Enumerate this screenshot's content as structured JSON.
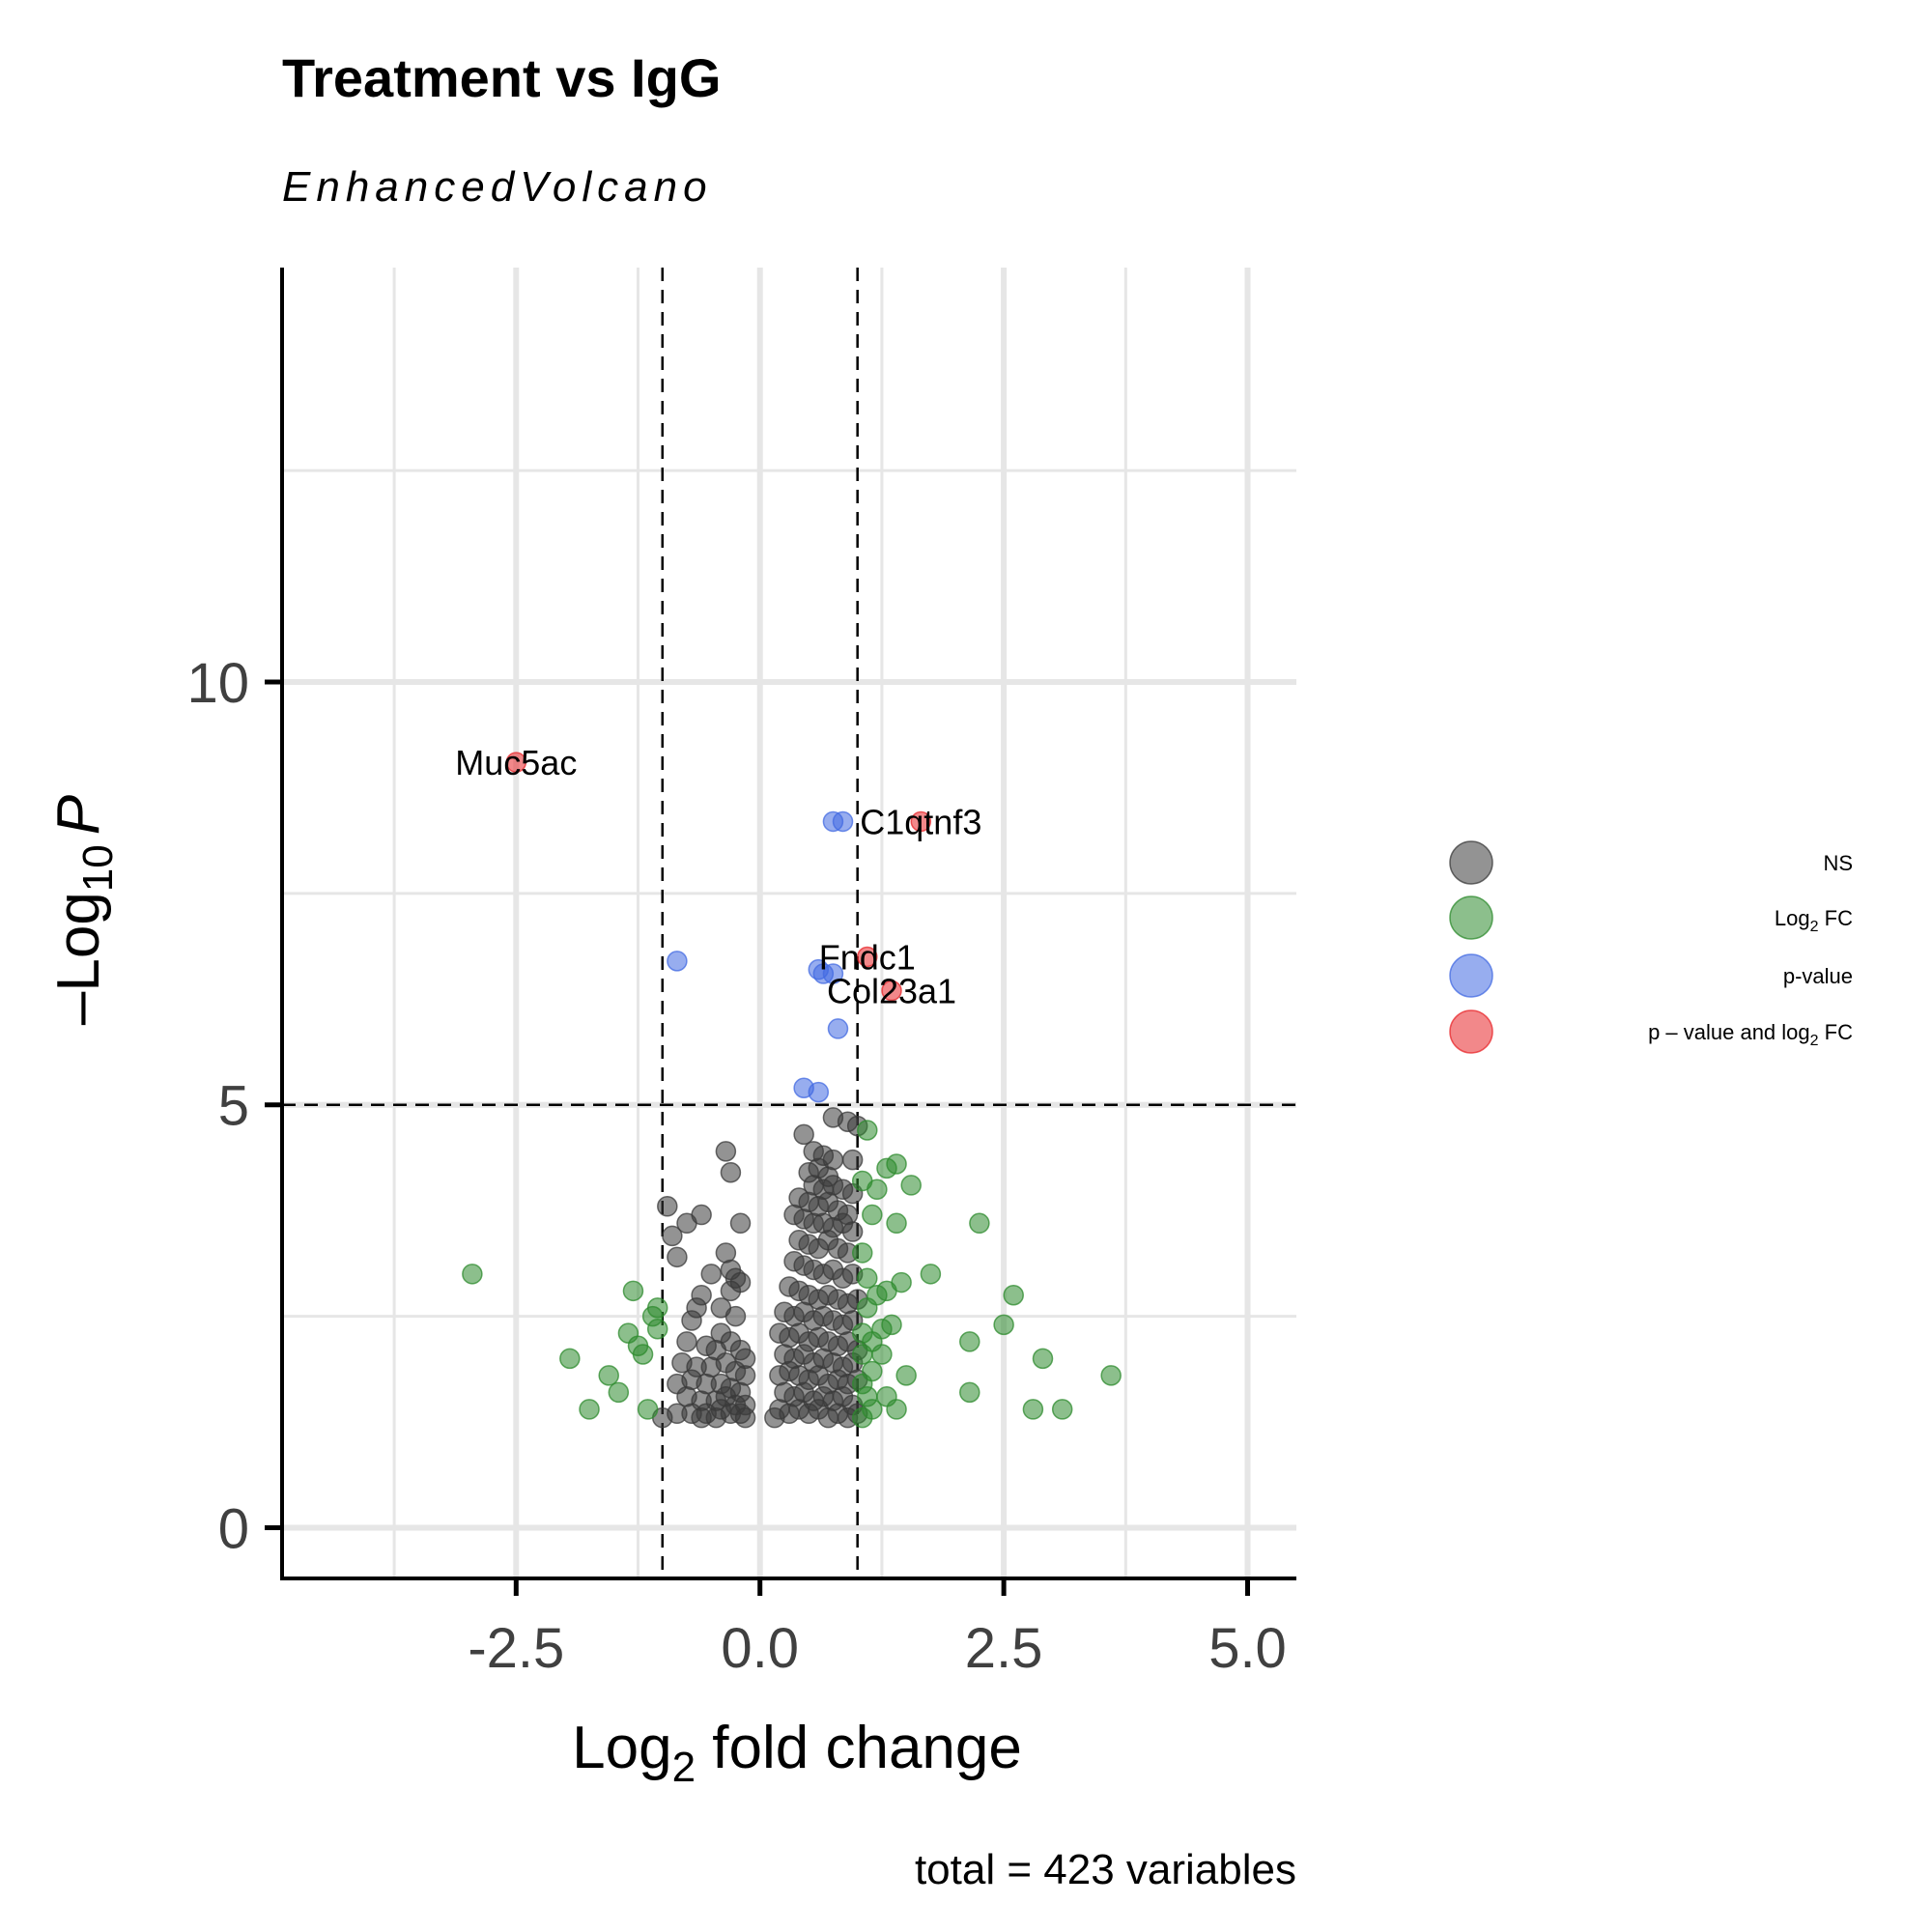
{
  "chart_data": {
    "type": "scatter",
    "title": "Treatment vs IgG",
    "subtitle": "EnhancedVolcano",
    "caption": "total = 423 variables",
    "xlabel": {
      "prefix": "Log",
      "sub": "2",
      "suffix": " fold change"
    },
    "ylabel": {
      "prefix": "–Log",
      "sub": "10",
      "suffix": "P"
    },
    "xlim": [
      -4.9,
      5.5
    ],
    "ylim": [
      -0.6,
      14.9
    ],
    "x_ticks": [
      -2.5,
      0.0,
      2.5,
      5.0
    ],
    "x_tick_labels": [
      "-2.5",
      "0.0",
      "2.5",
      "5.0"
    ],
    "y_ticks": [
      0,
      5,
      10
    ],
    "y_tick_labels": [
      "0",
      "5",
      "10"
    ],
    "minor_x": [
      -3.75,
      -1.25,
      1.25,
      3.75
    ],
    "minor_y": [
      2.5,
      7.5,
      12.5
    ],
    "grid": true,
    "cutoffs": {
      "log2fc": [
        -1,
        1
      ],
      "neg_log10_p": 5
    },
    "legend": {
      "position": "right",
      "entries": [
        {
          "key": "NS",
          "label": "NS"
        },
        {
          "key": "FC",
          "label_prefix": "Log",
          "label_sub": "2",
          "label_suffix": " FC"
        },
        {
          "key": "P",
          "label": "p-value"
        },
        {
          "key": "FCP",
          "label_prefix": "p – value and log",
          "label_sub": "2",
          "label_suffix": " FC"
        }
      ]
    },
    "colors": {
      "NS": "#3a3a3a",
      "FC": "#2e8b2e",
      "P": "#4169e1",
      "FCP": "#e8262a"
    },
    "series": [
      {
        "key": "FCP",
        "points": [
          [
            -2.5,
            9.05
          ],
          [
            1.65,
            8.35
          ],
          [
            1.1,
            6.75
          ],
          [
            1.35,
            6.35
          ]
        ]
      },
      {
        "key": "P",
        "points": [
          [
            0.75,
            8.35
          ],
          [
            0.85,
            8.35
          ],
          [
            -0.85,
            6.7
          ],
          [
            0.6,
            6.6
          ],
          [
            0.65,
            6.55
          ],
          [
            0.75,
            6.55
          ],
          [
            0.8,
            5.9
          ],
          [
            0.45,
            5.2
          ],
          [
            0.6,
            5.15
          ]
        ]
      },
      {
        "key": "FC",
        "points": [
          [
            -2.95,
            3.0
          ],
          [
            -1.95,
            2.0
          ],
          [
            -1.75,
            1.4
          ],
          [
            -1.55,
            1.8
          ],
          [
            -1.45,
            1.6
          ],
          [
            -1.35,
            2.3
          ],
          [
            -1.3,
            2.8
          ],
          [
            -1.25,
            2.15
          ],
          [
            -1.2,
            2.05
          ],
          [
            -1.15,
            1.4
          ],
          [
            -1.1,
            2.5
          ],
          [
            -1.05,
            2.6
          ],
          [
            -1.05,
            2.35
          ],
          [
            1.1,
            4.7
          ],
          [
            1.05,
            4.1
          ],
          [
            1.15,
            3.7
          ],
          [
            1.2,
            4.0
          ],
          [
            1.3,
            4.25
          ],
          [
            1.4,
            4.3
          ],
          [
            1.55,
            4.05
          ],
          [
            1.4,
            3.6
          ],
          [
            1.05,
            3.25
          ],
          [
            1.1,
            2.95
          ],
          [
            1.2,
            2.75
          ],
          [
            1.3,
            2.8
          ],
          [
            1.45,
            2.9
          ],
          [
            1.1,
            2.6
          ],
          [
            1.05,
            2.3
          ],
          [
            1.15,
            2.2
          ],
          [
            1.25,
            2.35
          ],
          [
            1.35,
            2.4
          ],
          [
            1.05,
            2.05
          ],
          [
            1.15,
            1.85
          ],
          [
            1.25,
            2.05
          ],
          [
            1.05,
            1.7
          ],
          [
            1.1,
            1.55
          ],
          [
            1.15,
            1.4
          ],
          [
            1.3,
            1.55
          ],
          [
            1.4,
            1.4
          ],
          [
            1.5,
            1.8
          ],
          [
            1.75,
            3.0
          ],
          [
            2.25,
            3.6
          ],
          [
            2.6,
            2.75
          ],
          [
            2.5,
            2.4
          ],
          [
            2.15,
            2.2
          ],
          [
            2.9,
            2.0
          ],
          [
            2.15,
            1.6
          ],
          [
            2.8,
            1.4
          ],
          [
            3.1,
            1.4
          ],
          [
            3.6,
            1.8
          ],
          [
            1.05,
            1.3
          ]
        ]
      },
      {
        "key": "NS",
        "points": [
          [
            -0.35,
            4.45
          ],
          [
            -0.3,
            4.2
          ],
          [
            -0.2,
            3.6
          ],
          [
            -0.95,
            3.8
          ],
          [
            -0.6,
            3.7
          ],
          [
            -0.9,
            3.45
          ],
          [
            -0.85,
            3.2
          ],
          [
            -0.75,
            3.6
          ],
          [
            -0.35,
            3.25
          ],
          [
            -0.3,
            3.05
          ],
          [
            -0.25,
            2.95
          ],
          [
            -0.2,
            2.9
          ],
          [
            -0.5,
            3.0
          ],
          [
            -0.6,
            2.75
          ],
          [
            -0.3,
            2.8
          ],
          [
            -0.4,
            2.6
          ],
          [
            -0.25,
            2.5
          ],
          [
            -0.65,
            2.6
          ],
          [
            -0.7,
            2.45
          ],
          [
            -0.4,
            2.3
          ],
          [
            -0.75,
            2.2
          ],
          [
            -0.55,
            2.15
          ],
          [
            -0.45,
            2.1
          ],
          [
            -0.3,
            2.2
          ],
          [
            -0.2,
            2.1
          ],
          [
            -0.15,
            2.0
          ],
          [
            -0.8,
            1.95
          ],
          [
            -0.65,
            1.9
          ],
          [
            -0.5,
            1.9
          ],
          [
            -0.35,
            1.95
          ],
          [
            -0.25,
            1.85
          ],
          [
            -0.15,
            1.8
          ],
          [
            -0.85,
            1.7
          ],
          [
            -0.7,
            1.75
          ],
          [
            -0.55,
            1.7
          ],
          [
            -0.4,
            1.7
          ],
          [
            -0.3,
            1.65
          ],
          [
            -0.2,
            1.6
          ],
          [
            -0.75,
            1.55
          ],
          [
            -0.6,
            1.5
          ],
          [
            -0.45,
            1.5
          ],
          [
            -0.35,
            1.55
          ],
          [
            -0.25,
            1.45
          ],
          [
            -0.15,
            1.45
          ],
          [
            -0.7,
            1.35
          ],
          [
            -0.55,
            1.35
          ],
          [
            -0.4,
            1.4
          ],
          [
            -0.3,
            1.35
          ],
          [
            -0.2,
            1.35
          ],
          [
            -0.15,
            1.3
          ],
          [
            -1.0,
            1.3
          ],
          [
            -0.85,
            1.35
          ],
          [
            -0.6,
            1.3
          ],
          [
            -0.45,
            1.3
          ],
          [
            0.75,
            4.85
          ],
          [
            0.9,
            4.8
          ],
          [
            1.0,
            4.75
          ],
          [
            0.45,
            4.65
          ],
          [
            0.55,
            4.45
          ],
          [
            0.65,
            4.4
          ],
          [
            0.75,
            4.35
          ],
          [
            0.95,
            4.35
          ],
          [
            0.5,
            4.2
          ],
          [
            0.6,
            4.25
          ],
          [
            0.7,
            4.15
          ],
          [
            0.55,
            4.05
          ],
          [
            0.65,
            4.0
          ],
          [
            0.75,
            4.05
          ],
          [
            0.85,
            4.0
          ],
          [
            0.95,
            3.95
          ],
          [
            0.4,
            3.9
          ],
          [
            0.5,
            3.85
          ],
          [
            0.6,
            3.8
          ],
          [
            0.7,
            3.85
          ],
          [
            0.8,
            3.75
          ],
          [
            0.9,
            3.7
          ],
          [
            0.35,
            3.7
          ],
          [
            0.45,
            3.65
          ],
          [
            0.55,
            3.6
          ],
          [
            0.65,
            3.6
          ],
          [
            0.75,
            3.55
          ],
          [
            0.85,
            3.6
          ],
          [
            0.95,
            3.5
          ],
          [
            0.4,
            3.4
          ],
          [
            0.5,
            3.35
          ],
          [
            0.6,
            3.3
          ],
          [
            0.7,
            3.4
          ],
          [
            0.8,
            3.3
          ],
          [
            0.9,
            3.25
          ],
          [
            0.35,
            3.15
          ],
          [
            0.45,
            3.1
          ],
          [
            0.55,
            3.05
          ],
          [
            0.65,
            3.0
          ],
          [
            0.75,
            3.05
          ],
          [
            0.85,
            2.95
          ],
          [
            0.95,
            3.0
          ],
          [
            0.3,
            2.85
          ],
          [
            0.4,
            2.8
          ],
          [
            0.5,
            2.75
          ],
          [
            0.6,
            2.7
          ],
          [
            0.7,
            2.75
          ],
          [
            0.8,
            2.7
          ],
          [
            0.9,
            2.65
          ],
          [
            1.0,
            2.7
          ],
          [
            0.25,
            2.55
          ],
          [
            0.35,
            2.5
          ],
          [
            0.45,
            2.55
          ],
          [
            0.55,
            2.45
          ],
          [
            0.65,
            2.5
          ],
          [
            0.75,
            2.45
          ],
          [
            0.85,
            2.4
          ],
          [
            0.95,
            2.45
          ],
          [
            0.2,
            2.3
          ],
          [
            0.3,
            2.25
          ],
          [
            0.4,
            2.3
          ],
          [
            0.5,
            2.2
          ],
          [
            0.6,
            2.25
          ],
          [
            0.7,
            2.2
          ],
          [
            0.8,
            2.15
          ],
          [
            0.9,
            2.2
          ],
          [
            1.0,
            2.1
          ],
          [
            0.25,
            2.05
          ],
          [
            0.35,
            2.0
          ],
          [
            0.45,
            2.05
          ],
          [
            0.55,
            1.95
          ],
          [
            0.65,
            2.0
          ],
          [
            0.75,
            1.95
          ],
          [
            0.85,
            1.9
          ],
          [
            0.95,
            1.95
          ],
          [
            0.2,
            1.8
          ],
          [
            0.3,
            1.85
          ],
          [
            0.4,
            1.8
          ],
          [
            0.5,
            1.75
          ],
          [
            0.6,
            1.8
          ],
          [
            0.7,
            1.7
          ],
          [
            0.8,
            1.75
          ],
          [
            0.9,
            1.7
          ],
          [
            1.0,
            1.75
          ],
          [
            0.25,
            1.6
          ],
          [
            0.35,
            1.55
          ],
          [
            0.45,
            1.6
          ],
          [
            0.55,
            1.5
          ],
          [
            0.65,
            1.55
          ],
          [
            0.75,
            1.5
          ],
          [
            0.85,
            1.55
          ],
          [
            0.95,
            1.45
          ],
          [
            0.2,
            1.4
          ],
          [
            0.3,
            1.35
          ],
          [
            0.4,
            1.4
          ],
          [
            0.5,
            1.35
          ],
          [
            0.6,
            1.4
          ],
          [
            0.7,
            1.3
          ],
          [
            0.8,
            1.35
          ],
          [
            0.9,
            1.3
          ],
          [
            1.0,
            1.35
          ],
          [
            0.15,
            1.3
          ]
        ]
      }
    ],
    "annotations": [
      {
        "text": "Muc5ac",
        "x": -2.5,
        "y": 9.05
      },
      {
        "text": "C1qtnf3",
        "x": 1.65,
        "y": 8.35
      },
      {
        "text": "Fndc1",
        "x": 1.1,
        "y": 6.75
      },
      {
        "text": "Col23a1",
        "x": 1.35,
        "y": 6.35
      }
    ]
  }
}
